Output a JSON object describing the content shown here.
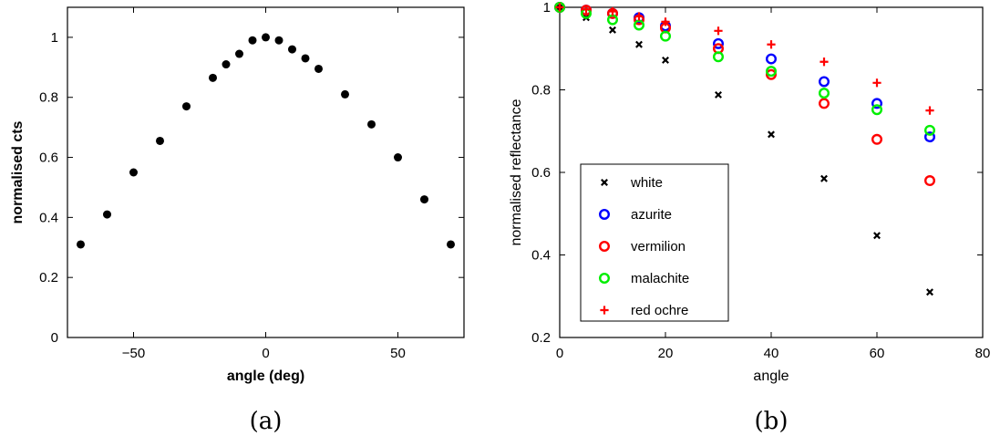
{
  "captions": [
    "(a)",
    "(b)"
  ],
  "colors": {
    "white": "#000000",
    "azurite": "#0000ff",
    "vermilion": "#ff0000",
    "malachite": "#00ee00",
    "red_ochre": "#ff0000"
  },
  "chart_data": [
    {
      "type": "scatter",
      "title": "",
      "xlabel": "angle (deg)",
      "ylabel": "normalised cts",
      "xlim": [
        -75,
        75
      ],
      "ylim": [
        0,
        1.1
      ],
      "xticks": [
        -50,
        0,
        50
      ],
      "yticks": [
        0,
        0.2,
        0.4,
        0.6,
        0.8,
        1
      ],
      "xtick_labels": [
        "−50",
        "0",
        "50"
      ],
      "ytick_labels": [
        "0",
        "0.2",
        "0.4",
        "0.6",
        "0.8",
        "1"
      ],
      "grid": false,
      "series": [
        {
          "marker": "filled-circle",
          "color": "#000000",
          "x": [
            -70,
            -60,
            -50,
            -40,
            -30,
            -20,
            -15,
            -10,
            -5,
            0,
            5,
            10,
            15,
            20,
            30,
            40,
            50,
            60,
            70
          ],
          "y": [
            0.31,
            0.41,
            0.55,
            0.655,
            0.77,
            0.865,
            0.91,
            0.945,
            0.99,
            1.0,
            0.99,
            0.96,
            0.93,
            0.895,
            0.81,
            0.71,
            0.6,
            0.46,
            0.31
          ]
        }
      ]
    },
    {
      "type": "scatter",
      "title": "",
      "xlabel": "angle",
      "ylabel": "normalised reflectance",
      "xlim": [
        0,
        80
      ],
      "ylim": [
        0.2,
        1
      ],
      "xticks": [
        0,
        20,
        40,
        60,
        80
      ],
      "yticks": [
        0.2,
        0.4,
        0.6,
        0.8,
        1
      ],
      "xtick_labels": [
        "0",
        "20",
        "40",
        "60",
        "80"
      ],
      "ytick_labels": [
        "0.2",
        "0.4",
        "0.6",
        "0.8",
        "1"
      ],
      "grid": false,
      "legend_position": "bottom-left",
      "series": [
        {
          "name": "white",
          "marker": "x",
          "color": "#000000",
          "x": [
            0,
            5,
            10,
            15,
            20,
            30,
            40,
            50,
            60,
            70
          ],
          "y": [
            1.0,
            0.975,
            0.945,
            0.91,
            0.872,
            0.788,
            0.692,
            0.585,
            0.447,
            0.31
          ]
        },
        {
          "name": "azurite",
          "marker": "circle",
          "color": "#0000ff",
          "x": [
            0,
            5,
            10,
            15,
            20,
            30,
            40,
            50,
            60,
            70
          ],
          "y": [
            1.0,
            0.993,
            0.985,
            0.975,
            0.955,
            0.912,
            0.875,
            0.82,
            0.767,
            0.686
          ]
        },
        {
          "name": "vermilion",
          "marker": "circle",
          "color": "#ff0000",
          "x": [
            0,
            5,
            10,
            15,
            20,
            30,
            40,
            50,
            60,
            70
          ],
          "y": [
            1.0,
            0.993,
            0.985,
            0.97,
            0.95,
            0.9,
            0.837,
            0.767,
            0.68,
            0.58
          ]
        },
        {
          "name": "malachite",
          "marker": "circle",
          "color": "#00ee00",
          "x": [
            0,
            5,
            10,
            15,
            20,
            30,
            40,
            50,
            60,
            70
          ],
          "y": [
            1.0,
            0.985,
            0.97,
            0.957,
            0.93,
            0.88,
            0.845,
            0.792,
            0.752,
            0.702
          ]
        },
        {
          "name": "red ochre",
          "marker": "plus",
          "color": "#ff0000",
          "x": [
            0,
            5,
            10,
            15,
            20,
            30,
            40,
            50,
            60,
            70
          ],
          "y": [
            1.0,
            0.995,
            0.99,
            0.978,
            0.965,
            0.943,
            0.91,
            0.868,
            0.817,
            0.75
          ]
        }
      ]
    }
  ]
}
